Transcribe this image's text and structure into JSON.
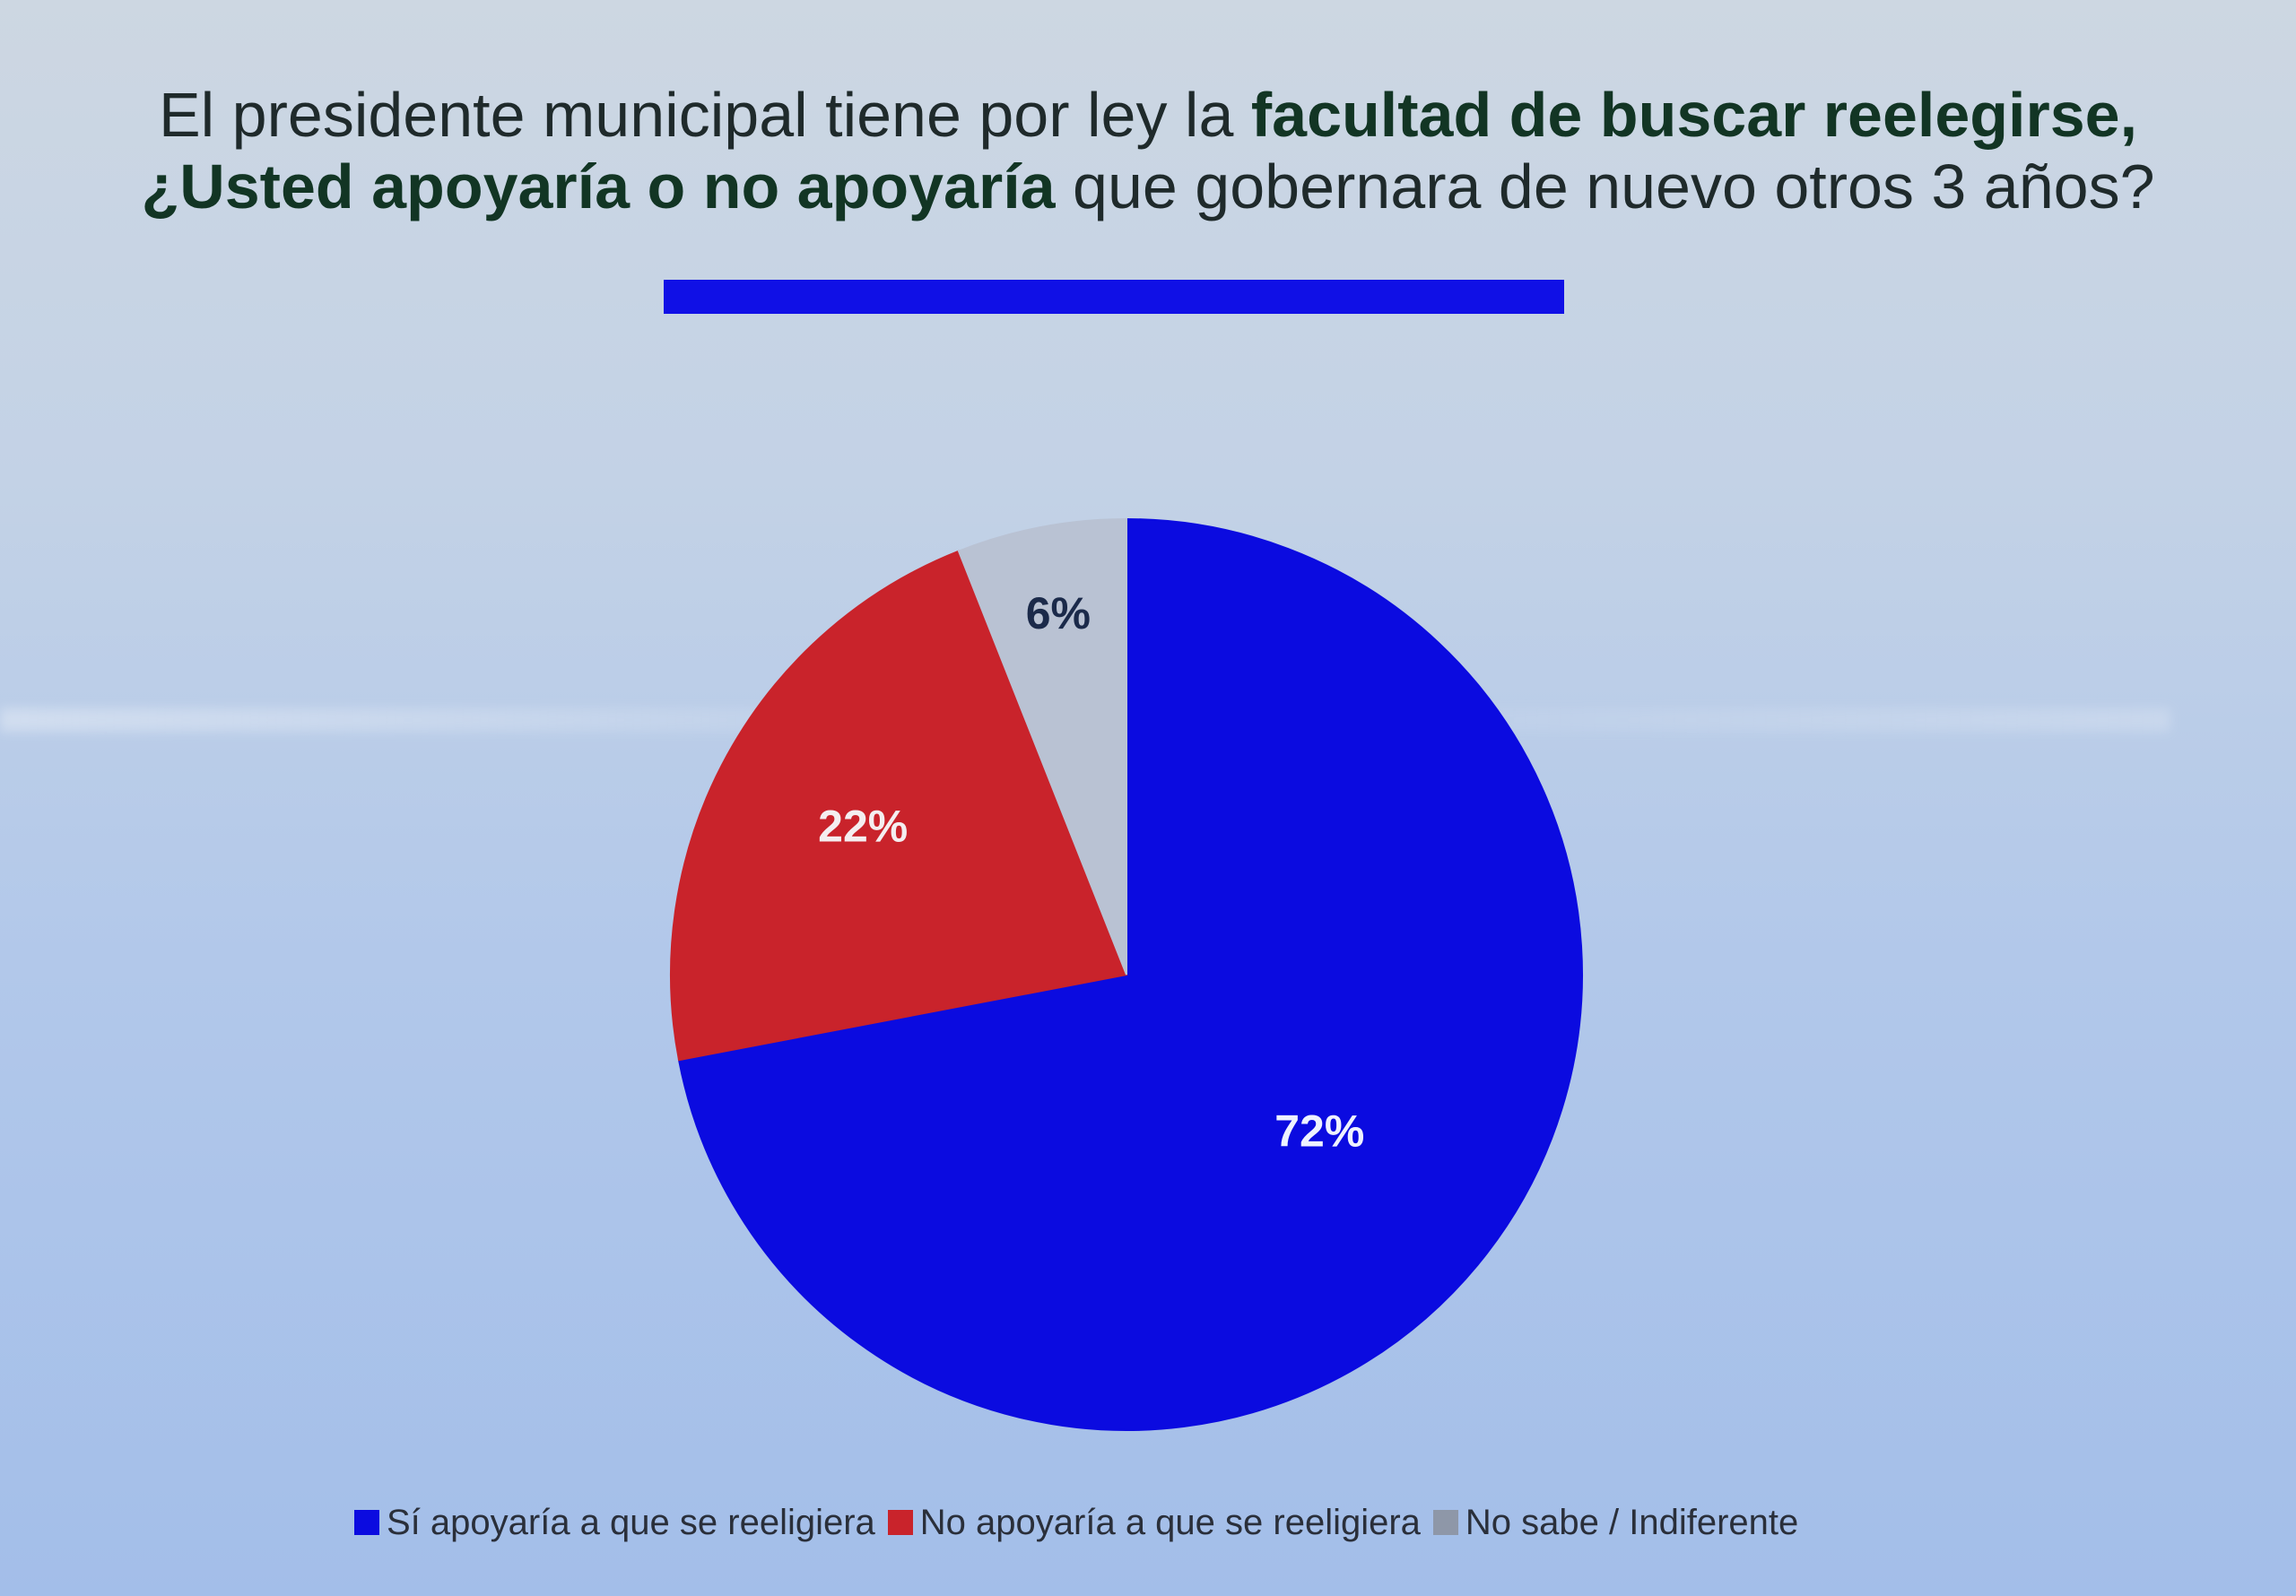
{
  "title": {
    "line1_regular": "El presidente municipal tiene por ley la ",
    "line1_bold": "facultad de buscar reelegirse,",
    "line2_bold": "¿Usted apoyaría o no apoyaría",
    "line2_regular": " que gobernara de nuevo otros 3 años?"
  },
  "colors": {
    "accent_rule": "#1010e6",
    "si": "#0b0be0",
    "no": "#c9232b",
    "ns": "#b9c2d3"
  },
  "chart_data": {
    "type": "pie",
    "start_angle_deg": 0,
    "direction": "clockwise",
    "slices": [
      {
        "name": "Sí apoyaría a que se reeligiera",
        "value": 72,
        "label": "72%",
        "color": "#0b0be0",
        "label_color": "#eef2ff"
      },
      {
        "name": "No apoyaría a que se reeligiera",
        "value": 22,
        "label": "22%",
        "color": "#c9232b",
        "label_color": "#f4eef0"
      },
      {
        "name": "No sabe / Indiferente",
        "value": 6,
        "label": "6%",
        "color": "#b9c2d3",
        "label_color": "#1b2a4a"
      }
    ],
    "legend": {
      "position": "bottom"
    }
  },
  "legend": [
    {
      "label": "Sí apoyaría a que se reeligiera",
      "color": "#0b0be0"
    },
    {
      "label": "No apoyaría a que se reeligiera",
      "color": "#c9232b"
    },
    {
      "label": "No sabe / Indiferente",
      "color": "#8e97a8"
    }
  ]
}
